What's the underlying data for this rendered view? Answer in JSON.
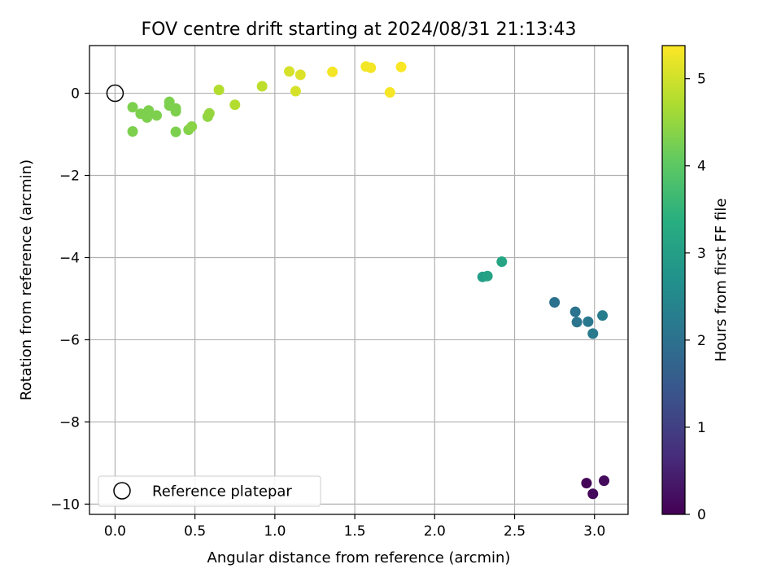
{
  "chart_data": {
    "type": "scatter",
    "title": "FOV centre drift starting at 2024/08/31 21:13:43",
    "xlabel": "Angular distance from reference (arcmin)",
    "ylabel": "Rotation from reference (arcmin)",
    "xlim": [
      -0.16,
      3.21
    ],
    "ylim": [
      -10.25,
      1.16
    ],
    "xticks": [
      0.0,
      0.5,
      1.0,
      1.5,
      2.0,
      2.5,
      3.0
    ],
    "xtick_labels": [
      "0.0",
      "0.5",
      "1.0",
      "1.5",
      "2.0",
      "2.5",
      "3.0"
    ],
    "yticks": [
      -10,
      -8,
      -6,
      -4,
      -2,
      0
    ],
    "ytick_labels": [
      "−10",
      "−8",
      "−6",
      "−4",
      "−2",
      "0"
    ],
    "grid": true,
    "colormap": "viridis",
    "colorbar": {
      "label": "Hours from first FF file",
      "range": [
        0,
        5.38
      ],
      "ticks": [
        0,
        1,
        2,
        3,
        4,
        5
      ],
      "tick_labels": [
        "0",
        "1",
        "2",
        "3",
        "4",
        "5"
      ]
    },
    "legend": {
      "placement": "lower-left",
      "entries": [
        "Reference platepar"
      ]
    },
    "reference_point": {
      "x": 0.0,
      "y": 0.0
    },
    "points": [
      {
        "x": 2.95,
        "y": -9.49,
        "hours": 0.05
      },
      {
        "x": 2.99,
        "y": -9.75,
        "hours": 0.1
      },
      {
        "x": 3.06,
        "y": -9.43,
        "hours": 0.15
      },
      {
        "x": 2.75,
        "y": -5.09,
        "hours": 2.0
      },
      {
        "x": 2.88,
        "y": -5.32,
        "hours": 2.05
      },
      {
        "x": 2.89,
        "y": -5.57,
        "hours": 2.1
      },
      {
        "x": 2.96,
        "y": -5.56,
        "hours": 2.15
      },
      {
        "x": 2.99,
        "y": -5.85,
        "hours": 2.2
      },
      {
        "x": 3.05,
        "y": -5.41,
        "hours": 2.25
      },
      {
        "x": 2.3,
        "y": -4.47,
        "hours": 3.0
      },
      {
        "x": 2.33,
        "y": -4.45,
        "hours": 3.05
      },
      {
        "x": 2.42,
        "y": -4.1,
        "hours": 3.15
      },
      {
        "x": 0.11,
        "y": -0.34,
        "hours": 4.3
      },
      {
        "x": 0.11,
        "y": -0.93,
        "hours": 4.3
      },
      {
        "x": 0.16,
        "y": -0.5,
        "hours": 4.3
      },
      {
        "x": 0.2,
        "y": -0.59,
        "hours": 4.3
      },
      {
        "x": 0.21,
        "y": -0.42,
        "hours": 4.3
      },
      {
        "x": 0.26,
        "y": -0.54,
        "hours": 4.3
      },
      {
        "x": 0.34,
        "y": -0.21,
        "hours": 4.3
      },
      {
        "x": 0.34,
        "y": -0.3,
        "hours": 4.3
      },
      {
        "x": 0.38,
        "y": -0.94,
        "hours": 4.3
      },
      {
        "x": 0.38,
        "y": -0.37,
        "hours": 4.3
      },
      {
        "x": 0.38,
        "y": -0.44,
        "hours": 4.3
      },
      {
        "x": 0.46,
        "y": -0.89,
        "hours": 4.35
      },
      {
        "x": 0.48,
        "y": -0.81,
        "hours": 4.4
      },
      {
        "x": 0.58,
        "y": -0.57,
        "hours": 4.45
      },
      {
        "x": 0.59,
        "y": -0.49,
        "hours": 4.5
      },
      {
        "x": 0.65,
        "y": 0.08,
        "hours": 4.75
      },
      {
        "x": 0.75,
        "y": -0.28,
        "hours": 4.75
      },
      {
        "x": 0.92,
        "y": 0.17,
        "hours": 4.85
      },
      {
        "x": 1.09,
        "y": 0.53,
        "hours": 5.05
      },
      {
        "x": 1.13,
        "y": 0.05,
        "hours": 5.05
      },
      {
        "x": 1.16,
        "y": 0.45,
        "hours": 5.1
      },
      {
        "x": 1.36,
        "y": 0.52,
        "hours": 5.3
      },
      {
        "x": 1.57,
        "y": 0.65,
        "hours": 5.3
      },
      {
        "x": 1.6,
        "y": 0.62,
        "hours": 5.3
      },
      {
        "x": 1.72,
        "y": 0.02,
        "hours": 5.32
      },
      {
        "x": 1.79,
        "y": 0.64,
        "hours": 5.35
      }
    ]
  }
}
